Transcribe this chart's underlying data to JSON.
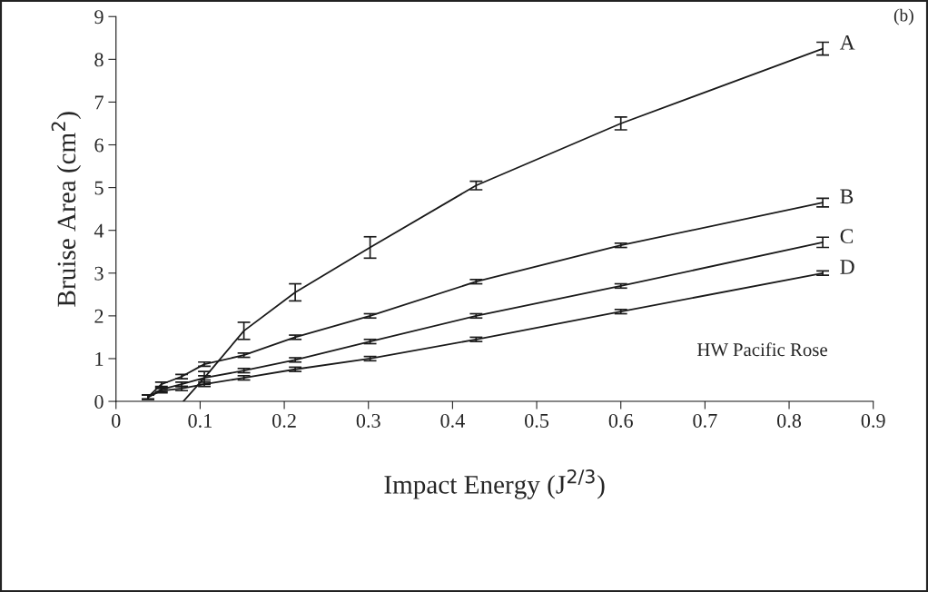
{
  "chart_data": {
    "type": "line",
    "xlabel": "Impact Energy (J$^{2/3}$)",
    "ylabel": "Bruise Area (cm$^{2}$)",
    "annotations": [
      "(b)",
      "HW Pacific Rose"
    ],
    "xlim": [
      0,
      0.9
    ],
    "xticks": [
      0,
      0.1,
      0.2,
      0.3,
      0.4,
      0.5,
      0.6,
      0.7,
      0.8,
      0.9
    ],
    "ylim": [
      0,
      9
    ],
    "yticks": [
      0,
      1,
      2,
      3,
      4,
      5,
      6,
      7,
      8,
      9
    ],
    "grid": false,
    "legend": false,
    "marker": "none",
    "line_style": "solid",
    "series": [
      {
        "name": "A",
        "color": "#1a1a1a",
        "x": [
          0.08,
          0.105,
          0.152,
          0.213,
          0.302,
          0.428,
          0.6,
          0.84
        ],
        "values": [
          0,
          0.55,
          1.65,
          2.55,
          3.6,
          5.05,
          6.5,
          8.25
        ],
        "errors": [
          null,
          0.15,
          0.2,
          0.2,
          0.25,
          0.1,
          0.15,
          0.15
        ]
      },
      {
        "name": "B",
        "color": "#1a1a1a",
        "x": [
          0.038,
          0.054,
          0.078,
          0.105,
          0.152,
          0.213,
          0.302,
          0.428,
          0.6,
          0.84
        ],
        "values": [
          0.1,
          0.4,
          0.58,
          0.87,
          1.08,
          1.5,
          2.0,
          2.8,
          3.65,
          4.65
        ],
        "errors": [
          0.05,
          0.05,
          0.05,
          0.05,
          0.05,
          0.05,
          0.05,
          0.05,
          0.05,
          0.1
        ]
      },
      {
        "name": "C",
        "color": "#1a1a1a",
        "x": [
          0.038,
          0.054,
          0.078,
          0.105,
          0.152,
          0.213,
          0.302,
          0.428,
          0.6,
          0.84
        ],
        "values": [
          0.1,
          0.28,
          0.4,
          0.55,
          0.72,
          0.97,
          1.4,
          2.0,
          2.7,
          3.72
        ],
        "errors": [
          0.05,
          0.05,
          0.05,
          0.05,
          0.05,
          0.05,
          0.05,
          0.05,
          0.05,
          0.12
        ]
      },
      {
        "name": "D",
        "color": "#1a1a1a",
        "x": [
          0.038,
          0.054,
          0.078,
          0.105,
          0.152,
          0.213,
          0.302,
          0.428,
          0.6,
          0.84
        ],
        "values": [
          0.1,
          0.25,
          0.3,
          0.4,
          0.55,
          0.75,
          1.0,
          1.45,
          2.1,
          3.0
        ],
        "errors": [
          0.05,
          0.05,
          0.05,
          0.05,
          0.05,
          0.05,
          0.05,
          0.05,
          0.05,
          0.05
        ]
      }
    ]
  }
}
